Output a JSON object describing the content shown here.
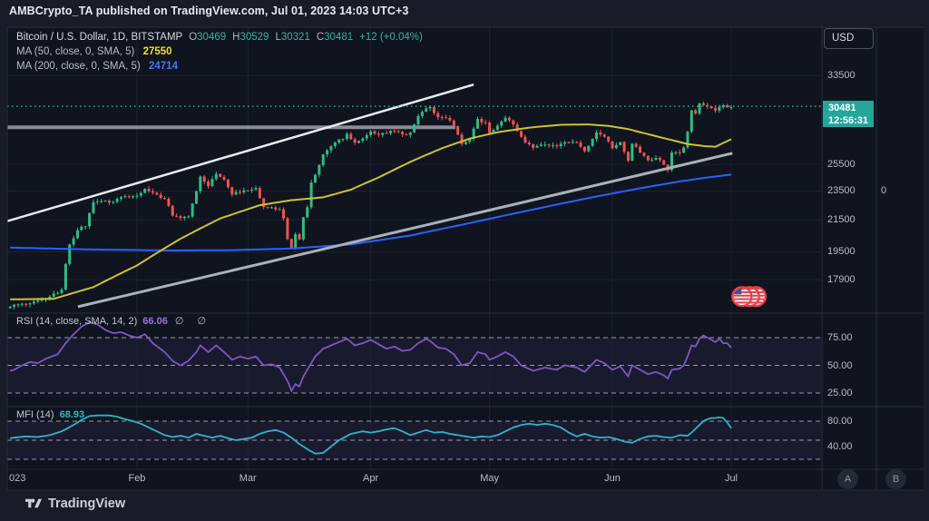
{
  "attribution": "AMBCrypto_TA published on TradingView.com, Jul 01, 2023 14:03 UTC+3",
  "symbol": {
    "title": "Bitcoin / U.S. Dollar, 1D, BITSTAMP",
    "ohlc": [
      {
        "label": "O",
        "value": "30469"
      },
      {
        "label": "H",
        "value": "30529"
      },
      {
        "label": "L",
        "value": "30321"
      },
      {
        "label": "C",
        "value": "30481"
      }
    ],
    "change": "+12 (+0.04%)"
  },
  "indicators": {
    "ma50": {
      "label": "MA (50, close, 0, SMA, 5)",
      "value": "27550"
    },
    "ma200": {
      "label": "MA (200, close, 0, SMA, 5)",
      "value": "24714"
    },
    "rsi": {
      "label": "RSI (14, close, SMA, 14, 2)",
      "value": "66.06",
      "extra": "∅ ∅"
    },
    "mfi": {
      "label": "MFI (14)",
      "value": "68.93"
    }
  },
  "price_axis": {
    "currency": "USD",
    "last_price": "30481",
    "countdown": "12:56:31",
    "secondary_label": "0"
  },
  "buttons": {
    "a": "A",
    "b": "B"
  },
  "footer": {
    "brand": "TradingView"
  },
  "chart_data": {
    "type": "candlestick",
    "title": "Bitcoin / U.S. Dollar, 1D, BITSTAMP",
    "price_scale": "log",
    "x_range": {
      "start": "Jan 2023",
      "end": "Jul 2023",
      "days": 181
    },
    "y_ticks": [
      {
        "label": "33500",
        "price": 33500
      },
      {
        "label": "25500",
        "price": 25500
      },
      {
        "label": "23500",
        "price": 23500
      },
      {
        "label": "21500",
        "price": 21500
      },
      {
        "label": "19500",
        "price": 19500
      },
      {
        "label": "17900",
        "price": 17900
      }
    ],
    "months": [
      {
        "label": "023",
        "day": 0,
        "align": "left"
      },
      {
        "label": "Feb",
        "day": 31
      },
      {
        "label": "Mar",
        "day": 59
      },
      {
        "label": "Apr",
        "day": 90
      },
      {
        "label": "May",
        "day": 120
      },
      {
        "label": "Jun",
        "day": 151
      },
      {
        "label": "Jul",
        "day": 181
      }
    ],
    "last": {
      "price": 30481,
      "countdown": "12:56:31"
    },
    "price_path_anchors": [
      [
        -2,
        16520
      ],
      [
        0,
        16550
      ],
      [
        4,
        16650
      ],
      [
        8,
        16950
      ],
      [
        11,
        17200
      ],
      [
        12,
        17450
      ],
      [
        13,
        18850
      ],
      [
        14,
        19950
      ],
      [
        16,
        20900
      ],
      [
        18,
        21100
      ],
      [
        20,
        22700
      ],
      [
        22,
        22900
      ],
      [
        24,
        22600
      ],
      [
        27,
        23050
      ],
      [
        29,
        23000
      ],
      [
        31,
        23120
      ],
      [
        33,
        23750
      ],
      [
        35,
        23400
      ],
      [
        38,
        22950
      ],
      [
        40,
        21850
      ],
      [
        42,
        21700
      ],
      [
        44,
        21800
      ],
      [
        46,
        23550
      ],
      [
        47,
        24600
      ],
      [
        49,
        23900
      ],
      [
        51,
        24850
      ],
      [
        53,
        24300
      ],
      [
        55,
        23200
      ],
      [
        57,
        23500
      ],
      [
        59,
        23450
      ],
      [
        61,
        23650
      ],
      [
        63,
        22350
      ],
      [
        65,
        22400
      ],
      [
        67,
        22200
      ],
      [
        68,
        21700
      ],
      [
        69,
        20350
      ],
      [
        70,
        19700
      ],
      [
        71,
        20500
      ],
      [
        72,
        20200
      ],
      [
        73,
        21750
      ],
      [
        74,
        22400
      ],
      [
        75,
        24150
      ],
      [
        76,
        24750
      ],
      [
        78,
        26300
      ],
      [
        80,
        26900
      ],
      [
        82,
        27450
      ],
      [
        84,
        27950
      ],
      [
        86,
        27250
      ],
      [
        88,
        27700
      ],
      [
        90,
        28300
      ],
      [
        92,
        27900
      ],
      [
        95,
        28300
      ],
      [
        98,
        27950
      ],
      [
        100,
        28050
      ],
      [
        102,
        29650
      ],
      [
        104,
        30400
      ],
      [
        105,
        30300
      ],
      [
        107,
        29450
      ],
      [
        109,
        29400
      ],
      [
        111,
        28800
      ],
      [
        113,
        27250
      ],
      [
        115,
        27500
      ],
      [
        117,
        29300
      ],
      [
        119,
        29000
      ],
      [
        120,
        28100
      ],
      [
        122,
        28700
      ],
      [
        124,
        29500
      ],
      [
        126,
        28850
      ],
      [
        128,
        27650
      ],
      [
        131,
        26800
      ],
      [
        134,
        27200
      ],
      [
        137,
        26850
      ],
      [
        139,
        27400
      ],
      [
        142,
        27225
      ],
      [
        144,
        26475
      ],
      [
        147,
        28075
      ],
      [
        149,
        27700
      ],
      [
        151,
        26820
      ],
      [
        153,
        27250
      ],
      [
        155,
        25750
      ],
      [
        156,
        27240
      ],
      [
        158,
        26500
      ],
      [
        160,
        25850
      ],
      [
        162,
        25950
      ],
      [
        164,
        25600
      ],
      [
        165,
        25125
      ],
      [
        166,
        26330
      ],
      [
        168,
        26500
      ],
      [
        169,
        26850
      ],
      [
        170,
        28320
      ],
      [
        171,
        30000
      ],
      [
        172,
        29900
      ],
      [
        173,
        30700
      ],
      [
        175,
        30550
      ],
      [
        176,
        30270
      ],
      [
        177,
        30080
      ],
      [
        178,
        30350
      ],
      [
        179,
        30450
      ],
      [
        180,
        30480
      ],
      [
        181,
        30481
      ]
    ],
    "ma50_anchors": [
      [
        -2,
        16850
      ],
      [
        10,
        16880
      ],
      [
        20,
        17500
      ],
      [
        31,
        18700
      ],
      [
        42,
        20300
      ],
      [
        52,
        21600
      ],
      [
        62,
        22500
      ],
      [
        70,
        22850
      ],
      [
        78,
        23050
      ],
      [
        85,
        23600
      ],
      [
        92,
        24500
      ],
      [
        100,
        25700
      ],
      [
        108,
        26800
      ],
      [
        115,
        27600
      ],
      [
        122,
        28150
      ],
      [
        130,
        28550
      ],
      [
        138,
        28800
      ],
      [
        145,
        28830
      ],
      [
        150,
        28700
      ],
      [
        155,
        28420
      ],
      [
        160,
        27980
      ],
      [
        165,
        27560
      ],
      [
        170,
        27150
      ],
      [
        174,
        26980
      ],
      [
        177,
        26920
      ],
      [
        181,
        27550
      ]
    ],
    "ma200_anchors": [
      [
        -2,
        19760
      ],
      [
        20,
        19640
      ],
      [
        40,
        19580
      ],
      [
        55,
        19600
      ],
      [
        70,
        19700
      ],
      [
        85,
        19950
      ],
      [
        100,
        20500
      ],
      [
        115,
        21300
      ],
      [
        130,
        22150
      ],
      [
        145,
        23000
      ],
      [
        158,
        23700
      ],
      [
        168,
        24200
      ],
      [
        175,
        24500
      ],
      [
        181,
        24714
      ]
    ],
    "trendlines": [
      {
        "name": "channel-top",
        "d1": -1.7,
        "p1": 21430,
        "d2": 116,
        "p2": 32580,
        "color": "#e9ebef",
        "width": 2.5
      },
      {
        "name": "channel-bottom",
        "d1": 16.1,
        "p1": 16480,
        "d2": 181.3,
        "p2": 26390,
        "color": "#abb1bb",
        "width": 3
      },
      {
        "name": "horizontal-resistance",
        "d1": -1.7,
        "p1": 28580,
        "d2": 111.4,
        "p2": 28580,
        "color": "#8f94a0",
        "width": 4
      }
    ],
    "price_line": {
      "price": 30481,
      "color": "#2aab9e"
    },
    "rsi": {
      "color": "#7e57c2",
      "last": 66.06,
      "bands": [
        75,
        50,
        25
      ],
      "axis_labels": [
        {
          "t": "75.00",
          "v": 75
        },
        {
          "t": "50.00",
          "v": 50
        },
        {
          "t": "25.00",
          "v": 25
        }
      ],
      "anchors": [
        [
          -2,
          44
        ],
        [
          0,
          46
        ],
        [
          2,
          50
        ],
        [
          4,
          53
        ],
        [
          6,
          52
        ],
        [
          8,
          56
        ],
        [
          11,
          60
        ],
        [
          13,
          70
        ],
        [
          15,
          78
        ],
        [
          17,
          85
        ],
        [
          19,
          89
        ],
        [
          21,
          87
        ],
        [
          23,
          82
        ],
        [
          25,
          79
        ],
        [
          27,
          80
        ],
        [
          29,
          77
        ],
        [
          31,
          75
        ],
        [
          33,
          78
        ],
        [
          35,
          70
        ],
        [
          38,
          62
        ],
        [
          40,
          54
        ],
        [
          42,
          50
        ],
        [
          44,
          54
        ],
        [
          46,
          62
        ],
        [
          47,
          68
        ],
        [
          49,
          62
        ],
        [
          51,
          68
        ],
        [
          53,
          62
        ],
        [
          55,
          55
        ],
        [
          57,
          58
        ],
        [
          59,
          56
        ],
        [
          61,
          58
        ],
        [
          63,
          50
        ],
        [
          65,
          51
        ],
        [
          67,
          48
        ],
        [
          69,
          36
        ],
        [
          70,
          27
        ],
        [
          71,
          33
        ],
        [
          72,
          31
        ],
        [
          73,
          40
        ],
        [
          75,
          52
        ],
        [
          76,
          58
        ],
        [
          78,
          65
        ],
        [
          80,
          68
        ],
        [
          82,
          71
        ],
        [
          84,
          74
        ],
        [
          86,
          68
        ],
        [
          88,
          70
        ],
        [
          90,
          73
        ],
        [
          92,
          69
        ],
        [
          94,
          65
        ],
        [
          96,
          67
        ],
        [
          98,
          63
        ],
        [
          100,
          64
        ],
        [
          102,
          70
        ],
        [
          104,
          74
        ],
        [
          105,
          72
        ],
        [
          107,
          66
        ],
        [
          109,
          65
        ],
        [
          111,
          60
        ],
        [
          113,
          50
        ],
        [
          115,
          52
        ],
        [
          117,
          62
        ],
        [
          119,
          60
        ],
        [
          120,
          55
        ],
        [
          122,
          58
        ],
        [
          124,
          62
        ],
        [
          126,
          58
        ],
        [
          128,
          50
        ],
        [
          131,
          45
        ],
        [
          134,
          48
        ],
        [
          137,
          46
        ],
        [
          139,
          50
        ],
        [
          142,
          48
        ],
        [
          144,
          44
        ],
        [
          147,
          55
        ],
        [
          149,
          52
        ],
        [
          151,
          46
        ],
        [
          153,
          49
        ],
        [
          155,
          40
        ],
        [
          156,
          50
        ],
        [
          158,
          46
        ],
        [
          160,
          42
        ],
        [
          162,
          44
        ],
        [
          164,
          41
        ],
        [
          165,
          38
        ],
        [
          166,
          46
        ],
        [
          168,
          47
        ],
        [
          169,
          50
        ],
        [
          170,
          58
        ],
        [
          171,
          68
        ],
        [
          172,
          67
        ],
        [
          173,
          74
        ],
        [
          174,
          77
        ],
        [
          175,
          75
        ],
        [
          176,
          73
        ],
        [
          177,
          71
        ],
        [
          178,
          74
        ],
        [
          179,
          70
        ],
        [
          180,
          70
        ],
        [
          181,
          66
        ]
      ]
    },
    "mfi": {
      "color": "#2fb6c5",
      "last": 68.93,
      "bands": [
        80,
        50,
        20
      ],
      "axis_labels": [
        {
          "t": "80.00",
          "v": 80
        },
        {
          "t": "40.00",
          "v": 40
        }
      ],
      "anchors": [
        [
          -2,
          52
        ],
        [
          0,
          54
        ],
        [
          3,
          56
        ],
        [
          6,
          55
        ],
        [
          9,
          58
        ],
        [
          12,
          64
        ],
        [
          15,
          74
        ],
        [
          17,
          82
        ],
        [
          19,
          88
        ],
        [
          21,
          89
        ],
        [
          24,
          89
        ],
        [
          26,
          87
        ],
        [
          28,
          83
        ],
        [
          30,
          80
        ],
        [
          32,
          76
        ],
        [
          34,
          70
        ],
        [
          36,
          64
        ],
        [
          38,
          58
        ],
        [
          40,
          55
        ],
        [
          42,
          57
        ],
        [
          44,
          54
        ],
        [
          46,
          60
        ],
        [
          48,
          57
        ],
        [
          50,
          54
        ],
        [
          52,
          57
        ],
        [
          54,
          53
        ],
        [
          56,
          50
        ],
        [
          58,
          52
        ],
        [
          60,
          54
        ],
        [
          62,
          60
        ],
        [
          64,
          64
        ],
        [
          66,
          66
        ],
        [
          68,
          62
        ],
        [
          70,
          54
        ],
        [
          72,
          44
        ],
        [
          74,
          36
        ],
        [
          76,
          29
        ],
        [
          78,
          30
        ],
        [
          80,
          40
        ],
        [
          82,
          50
        ],
        [
          85,
          60
        ],
        [
          88,
          64
        ],
        [
          90,
          62
        ],
        [
          92,
          64
        ],
        [
          94,
          67
        ],
        [
          96,
          69
        ],
        [
          98,
          64
        ],
        [
          100,
          58
        ],
        [
          102,
          62
        ],
        [
          104,
          66
        ],
        [
          106,
          62
        ],
        [
          108,
          63
        ],
        [
          110,
          60
        ],
        [
          112,
          58
        ],
        [
          114,
          56
        ],
        [
          116,
          54
        ],
        [
          118,
          56
        ],
        [
          120,
          55
        ],
        [
          122,
          58
        ],
        [
          124,
          64
        ],
        [
          126,
          70
        ],
        [
          128,
          74
        ],
        [
          130,
          76
        ],
        [
          132,
          74
        ],
        [
          134,
          76
        ],
        [
          136,
          74
        ],
        [
          138,
          70
        ],
        [
          140,
          62
        ],
        [
          142,
          56
        ],
        [
          144,
          60
        ],
        [
          146,
          56
        ],
        [
          148,
          54
        ],
        [
          150,
          55
        ],
        [
          152,
          52
        ],
        [
          154,
          48
        ],
        [
          156,
          46
        ],
        [
          158,
          52
        ],
        [
          160,
          56
        ],
        [
          162,
          57
        ],
        [
          164,
          55
        ],
        [
          166,
          54
        ],
        [
          168,
          58
        ],
        [
          170,
          57
        ],
        [
          171,
          62
        ],
        [
          172,
          68
        ],
        [
          173,
          74
        ],
        [
          174,
          80
        ],
        [
          175,
          83
        ],
        [
          176,
          85
        ],
        [
          177,
          85
        ],
        [
          178,
          86
        ],
        [
          179,
          85
        ],
        [
          180,
          78
        ],
        [
          181,
          69
        ]
      ]
    },
    "flags": {
      "count": 3,
      "price": 17000,
      "days": [
        183.7,
        185.6,
        187.3
      ]
    },
    "colors": {
      "up": "#2ebd85",
      "down": "#ef5350",
      "grid": "#1d2231",
      "separator": "#272c3a",
      "band_fill": "rgba(126,87,194,0.10)",
      "dashed": "#aeb2bd",
      "plot_bg": "#0f141f",
      "badge": "#26a69a"
    }
  }
}
